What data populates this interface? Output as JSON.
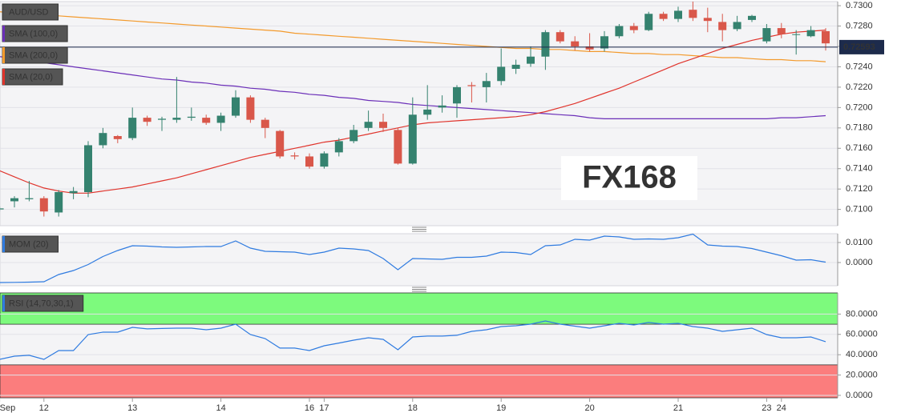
{
  "chart_data": [
    {
      "type": "candlestick",
      "title": "AUD/USD",
      "categories": [
        "Sep",
        null,
        null,
        "12",
        null,
        null,
        null,
        null,
        null,
        "13",
        null,
        null,
        null,
        null,
        null,
        "14",
        null,
        null,
        null,
        null,
        null,
        "16",
        "17",
        null,
        null,
        null,
        null,
        null,
        "18",
        null,
        null,
        null,
        null,
        null,
        "19",
        null,
        null,
        null,
        null,
        null,
        "20",
        null,
        null,
        null,
        null,
        null,
        "21",
        null,
        null,
        null,
        null,
        null,
        "23",
        "24",
        null,
        null,
        null
      ],
      "open": [
        0.71,
        0.7108,
        0.711,
        0.7111,
        0.7097,
        0.7116,
        0.7117,
        0.7163,
        0.7172,
        0.717,
        0.719,
        0.7188,
        0.7188,
        0.719,
        0.719,
        0.7185,
        0.7192,
        0.721,
        0.7188,
        0.7177,
        0.7153,
        0.7152,
        0.7142,
        0.7156,
        0.7167,
        0.718,
        0.7186,
        0.7178,
        0.7145,
        0.7193,
        0.72,
        0.7204,
        0.7222,
        0.722,
        0.7226,
        0.7238,
        0.7243,
        0.725,
        0.7274,
        0.7265,
        0.726,
        0.7258,
        0.727,
        0.728,
        0.7276,
        0.7292,
        0.7287,
        0.7296,
        0.7288,
        0.7284,
        0.7277,
        0.7286,
        0.7265,
        0.7278,
        0.7272,
        0.727,
        0.7275
      ],
      "high": [
        0.7103,
        0.7113,
        0.7128,
        0.7113,
        0.7119,
        0.7122,
        0.7167,
        0.718,
        0.7173,
        0.72,
        0.7192,
        0.7191,
        0.723,
        0.72,
        0.7193,
        0.7195,
        0.7217,
        0.7212,
        0.719,
        0.7178,
        0.7156,
        0.7155,
        0.7157,
        0.717,
        0.7183,
        0.7197,
        0.7194,
        0.718,
        0.721,
        0.7222,
        0.7212,
        0.7222,
        0.7225,
        0.7234,
        0.7258,
        0.7247,
        0.726,
        0.7276,
        0.7276,
        0.727,
        0.7273,
        0.7275,
        0.7282,
        0.7283,
        0.7294,
        0.7294,
        0.7299,
        0.7304,
        0.7298,
        0.7292,
        0.729,
        0.7291,
        0.7282,
        0.7283,
        0.7276,
        0.728,
        0.7278
      ],
      "low": [
        0.7098,
        0.7102,
        0.7108,
        0.7093,
        0.7093,
        0.711,
        0.7112,
        0.716,
        0.7165,
        0.7168,
        0.7182,
        0.7177,
        0.7185,
        0.7187,
        0.7183,
        0.7177,
        0.719,
        0.7185,
        0.717,
        0.715,
        0.7149,
        0.714,
        0.714,
        0.7152,
        0.7165,
        0.7177,
        0.7176,
        0.7144,
        0.7144,
        0.7188,
        0.7195,
        0.719,
        0.7205,
        0.7205,
        0.7222,
        0.7233,
        0.724,
        0.7237,
        0.7263,
        0.7256,
        0.7255,
        0.7255,
        0.7268,
        0.7273,
        0.7275,
        0.7285,
        0.7284,
        0.7285,
        0.7274,
        0.7265,
        0.7275,
        0.7284,
        0.7263,
        0.7268,
        0.7252,
        0.7269,
        0.7256
      ],
      "close": [
        0.7101,
        0.7111,
        0.7111,
        0.7098,
        0.7117,
        0.7118,
        0.7163,
        0.7175,
        0.7169,
        0.719,
        0.7186,
        0.7189,
        0.719,
        0.7191,
        0.7185,
        0.7192,
        0.721,
        0.7188,
        0.718,
        0.7152,
        0.7152,
        0.7142,
        0.7155,
        0.7167,
        0.7178,
        0.7186,
        0.718,
        0.7145,
        0.7193,
        0.7198,
        0.7202,
        0.722,
        0.7221,
        0.7226,
        0.724,
        0.7242,
        0.725,
        0.7274,
        0.7265,
        0.726,
        0.7257,
        0.727,
        0.728,
        0.7276,
        0.7292,
        0.7287,
        0.7295,
        0.7288,
        0.7285,
        0.7276,
        0.7284,
        0.729,
        0.7278,
        0.7272,
        0.7272,
        0.7276,
        0.7263
      ],
      "up_color": "#35826f",
      "down_color": "#d9574a",
      "series": [
        {
          "name": "SMA (100,0)",
          "color": "#6b2fb8",
          "values": [
            0.725,
            0.7248,
            0.7246,
            0.7244,
            0.7242,
            0.724,
            0.7238,
            0.7236,
            0.7234,
            0.7232,
            0.723,
            0.7228,
            0.7227,
            0.7225,
            0.7224,
            0.7222,
            0.7221,
            0.7219,
            0.7218,
            0.7216,
            0.7215,
            0.7213,
            0.7212,
            0.721,
            0.7209,
            0.7207,
            0.7206,
            0.7205,
            0.7203,
            0.7202,
            0.7201,
            0.72,
            0.7199,
            0.7198,
            0.7197,
            0.7196,
            0.7195,
            0.7194,
            0.7193,
            0.7192,
            0.719,
            0.7189,
            0.7189,
            0.7189,
            0.7189,
            0.7189,
            0.7189,
            0.7189,
            0.7189,
            0.7189,
            0.7189,
            0.7189,
            0.7189,
            0.719,
            0.719,
            0.7191,
            0.7192
          ]
        },
        {
          "name": "SMA (200,0)",
          "color": "#f39a2c",
          "values": [
            0.7294,
            0.7293,
            0.7292,
            0.7291,
            0.729,
            0.7289,
            0.7288,
            0.7287,
            0.7286,
            0.7285,
            0.7284,
            0.7283,
            0.7282,
            0.7281,
            0.728,
            0.7279,
            0.7278,
            0.7277,
            0.7276,
            0.7275,
            0.7273,
            0.7272,
            0.7271,
            0.727,
            0.7269,
            0.7268,
            0.7267,
            0.7266,
            0.7265,
            0.7264,
            0.7263,
            0.7262,
            0.7261,
            0.726,
            0.7259,
            0.7258,
            0.7258,
            0.7257,
            0.7257,
            0.7256,
            0.7255,
            0.7255,
            0.7254,
            0.7253,
            0.7253,
            0.7252,
            0.7252,
            0.7251,
            0.725,
            0.7249,
            0.7249,
            0.7248,
            0.7247,
            0.7247,
            0.7246,
            0.7246,
            0.7245
          ]
        },
        {
          "name": "SMA (20,0)",
          "color": "#e0342c",
          "values": [
            0.7138,
            0.7132,
            0.7126,
            0.7121,
            0.7118,
            0.7116,
            0.7116,
            0.7118,
            0.712,
            0.7122,
            0.7125,
            0.7128,
            0.7131,
            0.7135,
            0.7139,
            0.7143,
            0.7147,
            0.7151,
            0.7154,
            0.7157,
            0.716,
            0.7163,
            0.7166,
            0.7168,
            0.7171,
            0.7174,
            0.7177,
            0.718,
            0.7183,
            0.7185,
            0.7186,
            0.7187,
            0.7188,
            0.7189,
            0.719,
            0.7191,
            0.7193,
            0.7196,
            0.72,
            0.7204,
            0.7209,
            0.7214,
            0.7219,
            0.7225,
            0.7231,
            0.7237,
            0.7243,
            0.7248,
            0.7253,
            0.7258,
            0.7262,
            0.7266,
            0.7269,
            0.7272,
            0.7274,
            0.7275,
            0.7276
          ]
        }
      ],
      "last_price": 0.72593,
      "ylim": [
        0.7084,
        0.7304
      ],
      "yticks": [
        {
          "value": 0.73,
          "label": "0.7300"
        },
        {
          "value": 0.728,
          "label": "0.7280"
        },
        {
          "value": 0.726,
          "label": "0.7260"
        },
        {
          "value": 0.724,
          "label": "0.7240"
        },
        {
          "value": 0.722,
          "label": "0.7220"
        },
        {
          "value": 0.72,
          "label": "0.7200"
        },
        {
          "value": 0.718,
          "label": "0.7180"
        },
        {
          "value": 0.716,
          "label": "0.7160"
        },
        {
          "value": 0.714,
          "label": "0.7140"
        },
        {
          "value": 0.712,
          "label": "0.7120"
        },
        {
          "value": 0.71,
          "label": "0.7100"
        }
      ],
      "grid": true,
      "watermark": "FX168"
    },
    {
      "type": "line",
      "series": [
        {
          "name": "MOM (20)",
          "color": "#2f7be0",
          "values": [
            -0.01,
            -0.0099,
            -0.0098,
            -0.0096,
            -0.006,
            -0.004,
            -0.001,
            0.003,
            0.006,
            0.0084,
            0.0082,
            0.0078,
            0.0076,
            0.0078,
            0.008,
            0.008,
            0.0108,
            0.0072,
            0.0056,
            0.0054,
            0.0052,
            0.004,
            0.0052,
            0.0072,
            0.0068,
            0.006,
            0.002,
            -0.0036,
            0.002,
            0.0018,
            0.0016,
            0.0026,
            0.0026,
            0.0032,
            0.0052,
            0.005,
            0.004,
            0.0084,
            0.0088,
            0.0116,
            0.0112,
            0.0132,
            0.0128,
            0.0116,
            0.0118,
            0.0116,
            0.0124,
            0.0142,
            0.0088,
            0.0082,
            0.008,
            0.007,
            0.0052,
            0.0034,
            0.0012,
            0.0014,
            0.0002
          ]
        }
      ],
      "ylim": [
        -0.0116,
        0.0144
      ],
      "yticks": [
        {
          "value": 0.01,
          "label": "0.0100"
        },
        {
          "value": 0,
          "label": "0.0000"
        }
      ],
      "grid": true
    },
    {
      "type": "line",
      "series": [
        {
          "name": "RSI (14,70,30,1)",
          "color": "#2f7be0",
          "values": [
            35.4,
            38.6,
            39.4,
            35.4,
            44.1,
            44.1,
            59.8,
            62.2,
            62.2,
            66.9,
            65.4,
            65.8,
            66.1,
            66.1,
            64.6,
            66.1,
            70.1,
            59.8,
            55.9,
            46.5,
            46.5,
            44.1,
            48.8,
            51.5,
            54.3,
            56.7,
            55.1,
            44.9,
            57.5,
            58.3,
            58.3,
            59.1,
            63.0,
            64.6,
            67.7,
            68.5,
            70.1,
            73.2,
            70.1,
            68.1,
            66.1,
            68.5,
            70.9,
            69.3,
            71.7,
            70.1,
            70.9,
            67.7,
            66.1,
            63.0,
            64.6,
            66.1,
            59.8,
            56.7,
            56.7,
            57.5,
            52.8
          ]
        }
      ],
      "overbought": 70,
      "oversold": 30,
      "overbought_color": "#7dfa7d",
      "oversold_color": "#fb7d7d",
      "ylim": [
        -2.4,
        100.8
      ],
      "yticks": [
        {
          "value": 80,
          "label": "80.0000"
        },
        {
          "value": 60,
          "label": "60.0000"
        },
        {
          "value": 40,
          "label": "40.0000"
        },
        {
          "value": 20,
          "label": "20.0000"
        },
        {
          "value": 0,
          "label": "0.0000"
        }
      ],
      "grid": true
    }
  ]
}
